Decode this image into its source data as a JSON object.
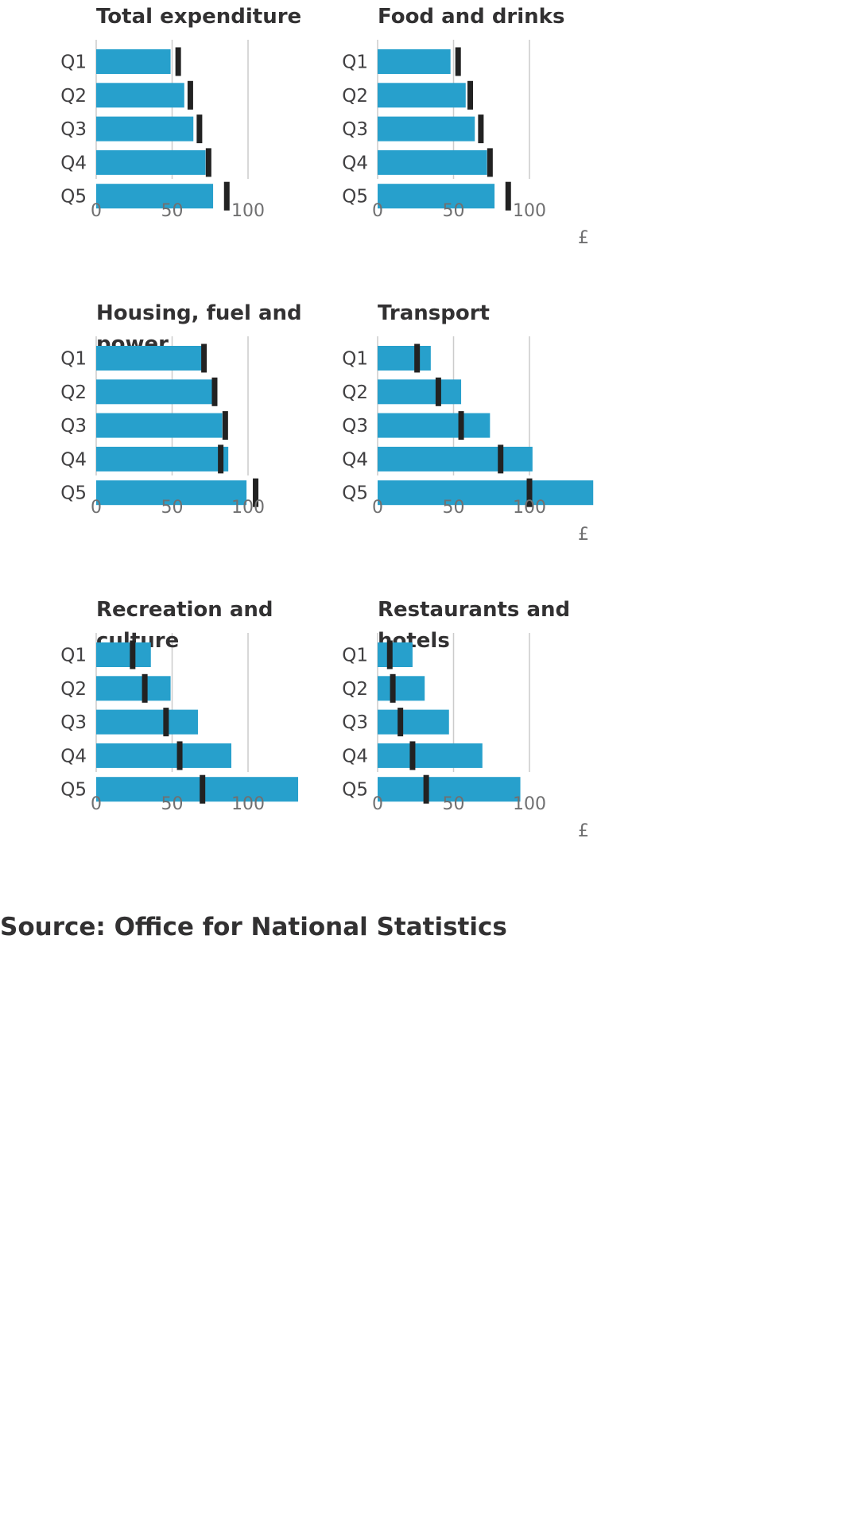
{
  "source": "Source: Office for National Statistics",
  "chart_data": [
    {
      "type": "bar",
      "title": "Total expenditure",
      "categories": [
        "Q1",
        "Q2",
        "Q3",
        "Q4",
        "Q5"
      ],
      "series": [
        {
          "values": [
            49,
            58,
            64,
            72,
            77
          ]
        },
        {
          "values": [
            54,
            62,
            68,
            74,
            86
          ]
        }
      ],
      "ticks": [
        0,
        50,
        100
      ],
      "xlim": [
        0,
        140
      ],
      "unit": ""
    },
    {
      "type": "bar",
      "title": "Food and drinks",
      "categories": [
        "Q1",
        "Q2",
        "Q3",
        "Q4",
        "Q5"
      ],
      "series": [
        {
          "values": [
            48,
            58,
            64,
            72,
            77
          ]
        },
        {
          "values": [
            53,
            61,
            68,
            74,
            86
          ]
        }
      ],
      "ticks": [
        0,
        50,
        100
      ],
      "xlim": [
        0,
        140
      ],
      "unit": "£"
    },
    {
      "type": "bar",
      "title": "Housing, fuel and power",
      "categories": [
        "Q1",
        "Q2",
        "Q3",
        "Q4",
        "Q5"
      ],
      "series": [
        {
          "values": [
            70,
            77,
            83,
            87,
            99
          ]
        },
        {
          "values": [
            71,
            78,
            85,
            82,
            105
          ]
        }
      ],
      "ticks": [
        0,
        50,
        100
      ],
      "xlim": [
        0,
        140
      ],
      "unit": ""
    },
    {
      "type": "bar",
      "title": "Transport",
      "categories": [
        "Q1",
        "Q2",
        "Q3",
        "Q4",
        "Q5"
      ],
      "series": [
        {
          "values": [
            35,
            55,
            74,
            102,
            142
          ]
        },
        {
          "values": [
            26,
            40,
            55,
            81,
            100
          ]
        }
      ],
      "ticks": [
        0,
        50,
        100
      ],
      "xlim": [
        0,
        140
      ],
      "unit": "£"
    },
    {
      "type": "bar",
      "title": "Recreation and culture",
      "categories": [
        "Q1",
        "Q2",
        "Q3",
        "Q4",
        "Q5"
      ],
      "series": [
        {
          "values": [
            36,
            49,
            67,
            89,
            133
          ]
        },
        {
          "values": [
            24,
            32,
            46,
            55,
            70
          ]
        }
      ],
      "ticks": [
        0,
        50,
        100
      ],
      "xlim": [
        0,
        140
      ],
      "unit": ""
    },
    {
      "type": "bar",
      "title": "Restaurants and hotels",
      "categories": [
        "Q1",
        "Q2",
        "Q3",
        "Q4",
        "Q5"
      ],
      "series": [
        {
          "values": [
            23,
            31,
            47,
            69,
            94
          ]
        },
        {
          "values": [
            8,
            10,
            15,
            23,
            32
          ]
        }
      ],
      "ticks": [
        0,
        50,
        100
      ],
      "xlim": [
        0,
        140
      ],
      "unit": "£"
    }
  ],
  "colors": {
    "bar": "#27a0cc",
    "marker": "#222222",
    "grid": "#cccccc",
    "title": "#323132",
    "category": "#414042",
    "tick": "#707071"
  }
}
